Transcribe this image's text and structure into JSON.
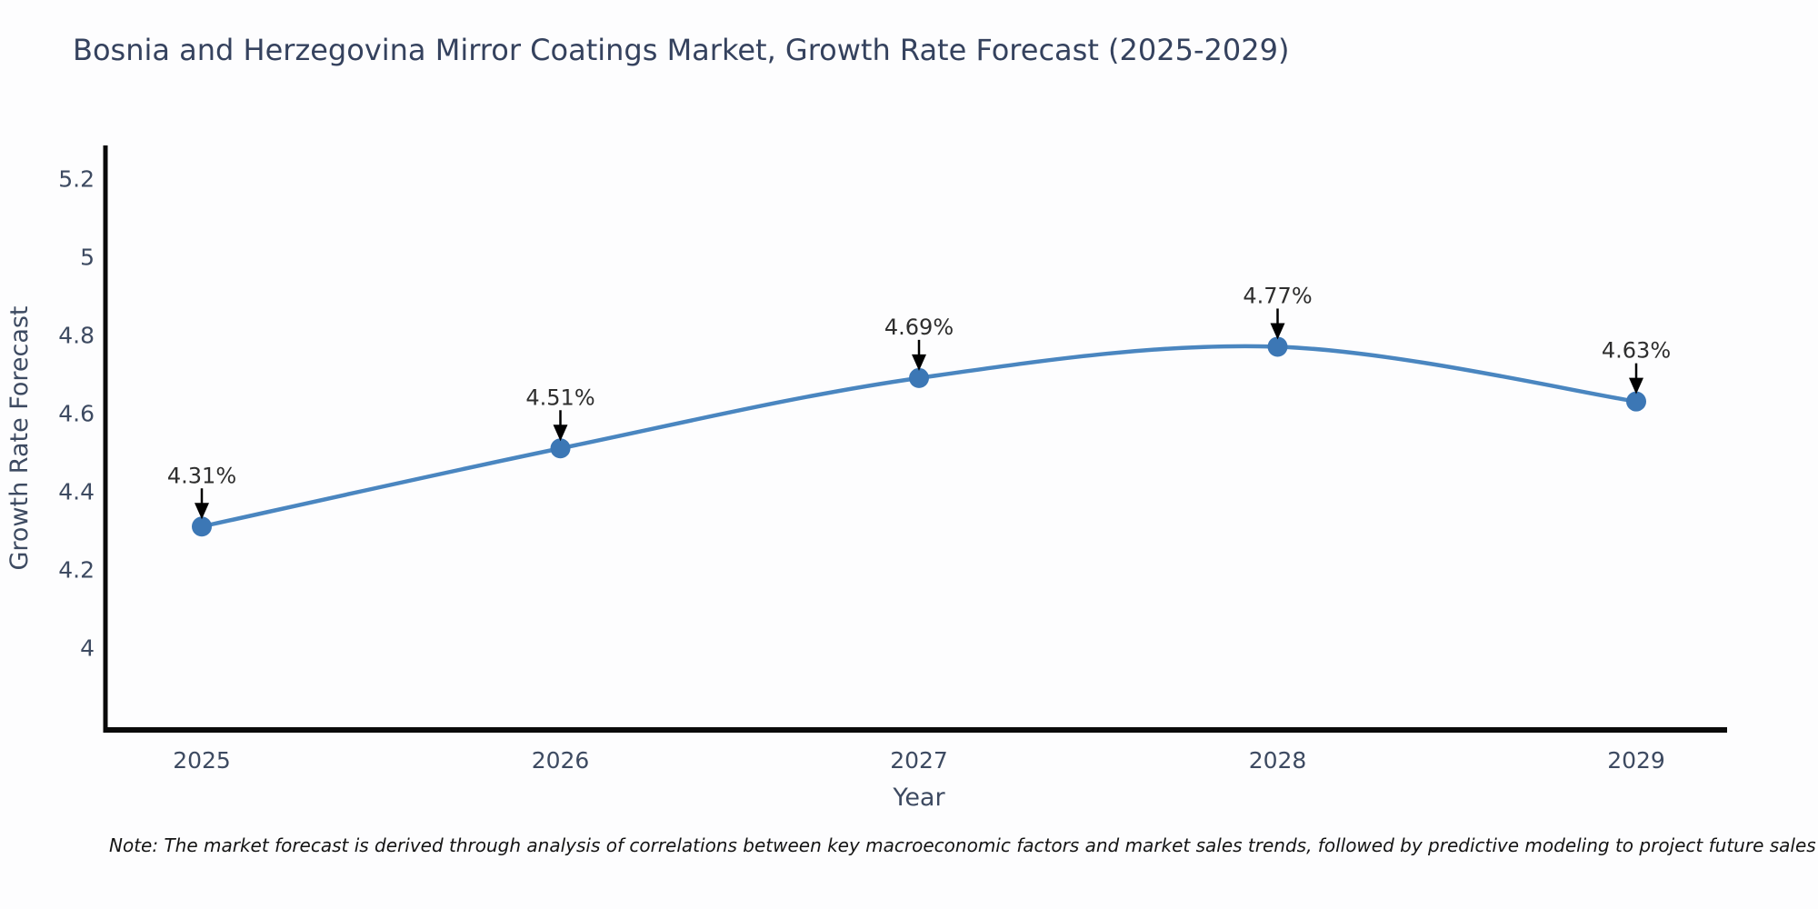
{
  "title": "Bosnia and Herzegovina Mirror Coatings Market, Growth Rate Forecast (2025-2029)",
  "note": "Note: The market forecast is derived through analysis of correlations between key macroeconomic factors and market sales trends, followed by predictive modeling to project future sales",
  "chart_data": {
    "type": "line",
    "title": "Bosnia and Herzegovina Mirror Coatings Market, Growth Rate Forecast (2025-2029)",
    "x": [
      "2025",
      "2026",
      "2027",
      "2028",
      "2029"
    ],
    "series": [
      {
        "name": "Growth Rate Forecast",
        "values": [
          4.31,
          4.51,
          4.69,
          4.77,
          4.63
        ]
      }
    ],
    "point_labels": [
      "4.31%",
      "4.51%",
      "4.69%",
      "4.77%",
      "4.63%"
    ],
    "xlabel": "Year",
    "ylabel": "Growth Rate Forecast",
    "ytick_labels": [
      "4",
      "4.2",
      "4.4",
      "4.6",
      "4.8",
      "5",
      "5.2"
    ],
    "yticks": [
      4,
      4.2,
      4.4,
      4.6,
      4.8,
      5,
      5.2
    ],
    "ylim": [
      3.785,
      5.285
    ],
    "grid": false,
    "legend": "none",
    "smooth": true,
    "annotation_arrows": true,
    "colors": {
      "line": "#4a86c0",
      "marker": "#3c77b5",
      "axis": "#0a0a0a",
      "tick_label": "#3d4a61",
      "axis_title": "#3d4a61",
      "chart_title": "#35425e",
      "annotation": "#2e2e2e",
      "arrow": "#000000",
      "background": "#fdfdfe"
    }
  }
}
